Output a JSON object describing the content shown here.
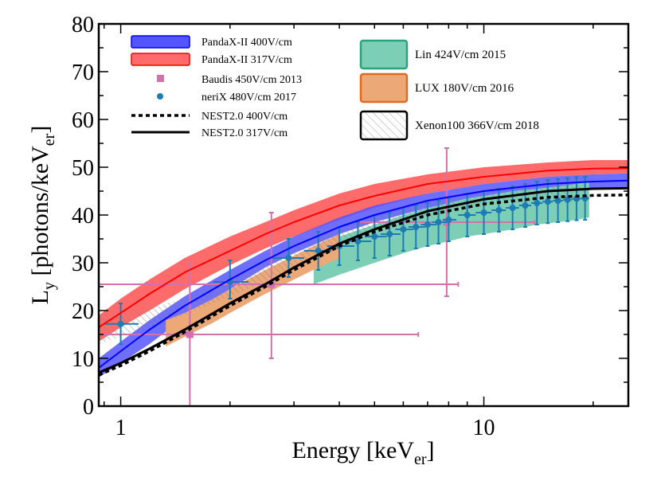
{
  "chart_data": {
    "type": "line",
    "xlabel": "Energy [keV",
    "xlabel_sub": "er",
    "xlabel_tail": "]",
    "ylabel": "L",
    "ylabel_sub": "y",
    "ylabel_mid": " [photons/keV",
    "ylabel_sub2": "er",
    "ylabel_tail": "]",
    "x_scale": "log",
    "xlim": [
      0.87,
      25
    ],
    "ylim": [
      0,
      80
    ],
    "x_ticks": [
      {
        "v": 1,
        "label": "1"
      },
      {
        "v": 10,
        "label": "10"
      }
    ],
    "y_ticks": [
      0,
      10,
      20,
      30,
      40,
      50,
      60,
      70,
      80
    ],
    "legend_left": [
      {
        "label": "PandaX-II 400V/cm",
        "style": "band",
        "color": "#5555ff"
      },
      {
        "label": "PandaX-II 317V/cm",
        "style": "band",
        "color": "#ff6a6a"
      },
      {
        "label": "Baudis 450V/cm 2013",
        "style": "square",
        "color": "#d371ac"
      },
      {
        "label": "neriX 480V/cm 2017",
        "style": "circle",
        "color": "#1f7bb4"
      },
      {
        "label": "NEST2.0 400V/cm",
        "style": "dashed",
        "color": "#000000"
      },
      {
        "label": "NEST2.0 317V/cm",
        "style": "solid",
        "color": "#000000"
      }
    ],
    "legend_right": [
      {
        "label": "Lin 424V/cm 2015",
        "style": "patch",
        "fill": "#7ccfb5",
        "stroke": "#2aa37a"
      },
      {
        "label": "LUX 180V/cm 2016",
        "style": "patch",
        "fill": "#eda878",
        "stroke": "#e06a1e"
      },
      {
        "label": "Xenon100 366V/cm 2018",
        "style": "hatch",
        "fill": "none",
        "stroke": "#000000"
      }
    ],
    "series": [
      {
        "name": "PandaX-II 317V/cm band",
        "type": "band",
        "color": "#ff6a6a",
        "x": [
          0.87,
          1.0,
          1.2,
          1.5,
          2.0,
          2.5,
          3.0,
          4.0,
          5.0,
          7.0,
          10.0,
          15.0,
          20.0,
          25.0
        ],
        "y_low": [
          13.5,
          16.5,
          20.0,
          24.5,
          29.5,
          33.0,
          35.5,
          39.0,
          41.5,
          44.5,
          46.5,
          48.0,
          48.5,
          48.7
        ],
        "y_high": [
          19.0,
          22.5,
          26.5,
          31.0,
          35.5,
          38.5,
          41.0,
          44.5,
          46.5,
          48.5,
          50.0,
          51.0,
          51.5,
          51.5
        ]
      },
      {
        "name": "PandaX-II 400V/cm band",
        "type": "band",
        "color": "#5555ff",
        "x": [
          0.87,
          1.0,
          1.2,
          1.5,
          2.0,
          2.5,
          3.0,
          4.0,
          5.0,
          7.0,
          10.0,
          15.0,
          20.0,
          25.0
        ],
        "y_low": [
          6.0,
          9.0,
          13.0,
          18.5,
          24.5,
          29.0,
          32.0,
          36.0,
          38.5,
          41.5,
          43.5,
          45.0,
          45.5,
          45.7
        ],
        "y_high": [
          10.0,
          13.5,
          18.0,
          23.0,
          28.5,
          32.5,
          35.5,
          39.5,
          42.0,
          44.5,
          46.5,
          48.0,
          48.5,
          48.7
        ]
      },
      {
        "name": "Lin 424V/cm 2015",
        "type": "band",
        "color": "#7ccfb5",
        "x": [
          3.4,
          4.0,
          5.0,
          6.0,
          7.0,
          8.0,
          9.0,
          10.0,
          12.0,
          14.0,
          16.0,
          18.0,
          19.5
        ],
        "y_low": [
          25.5,
          27.5,
          30.0,
          32.0,
          33.5,
          34.5,
          35.5,
          36.0,
          37.0,
          38.0,
          38.5,
          39.0,
          39.5
        ],
        "y_high": [
          33.0,
          35.5,
          38.0,
          40.0,
          41.5,
          42.5,
          43.5,
          44.0,
          45.0,
          45.5,
          46.0,
          46.5,
          47.0
        ]
      },
      {
        "name": "LUX 180V/cm 2016",
        "type": "band",
        "color": "#eda878",
        "x": [
          1.33,
          1.5,
          1.8,
          2.0,
          2.5,
          3.0,
          3.5,
          4.0
        ],
        "y_low": [
          12.5,
          14.5,
          17.5,
          19.5,
          23.5,
          26.5,
          29.0,
          31.0
        ],
        "y_high": [
          18.0,
          19.5,
          22.5,
          24.5,
          28.5,
          31.5,
          34.0,
          36.0
        ]
      },
      {
        "name": "Xenon100 366V/cm 2018",
        "type": "hatch",
        "color": "#555555",
        "x": [
          0.87,
          1.0,
          1.2,
          1.5,
          2.0,
          2.5,
          3.0,
          4.0,
          5.0,
          7.0,
          10.0,
          15.0,
          19.0
        ],
        "y_low": [
          13.0,
          14.5,
          16.5,
          19.0,
          23.0,
          26.0,
          29.0,
          33.5,
          36.5,
          40.0,
          42.5,
          44.0,
          44.5
        ],
        "y_high": [
          19.0,
          19.5,
          20.5,
          22.5,
          27.0,
          30.5,
          33.0,
          37.0,
          39.5,
          42.5,
          44.5,
          46.0,
          46.5
        ]
      },
      {
        "name": "PandaX-II 317V/cm fit",
        "type": "line",
        "color": "#ff0000",
        "width": 2,
        "x": [
          0.87,
          1.0,
          1.2,
          1.5,
          2.0,
          2.5,
          3.0,
          4.0,
          5.0,
          7.0,
          10.0,
          15.0,
          20.0,
          25.0
        ],
        "y": [
          16.5,
          19.5,
          23.5,
          28.0,
          32.5,
          36.0,
          38.5,
          42.0,
          44.0,
          46.5,
          48.0,
          49.3,
          49.7,
          49.8
        ]
      },
      {
        "name": "PandaX-II 400V/cm fit",
        "type": "line",
        "color": "#0000ff",
        "width": 2,
        "x": [
          0.87,
          1.0,
          1.2,
          1.5,
          2.0,
          2.5,
          3.0,
          4.0,
          5.0,
          7.0,
          10.0,
          15.0,
          20.0,
          25.0
        ],
        "y": [
          8.0,
          11.5,
          16.0,
          21.0,
          26.5,
          30.5,
          33.5,
          37.5,
          40.0,
          43.0,
          45.0,
          46.5,
          47.0,
          47.2
        ]
      },
      {
        "name": "NEST2.0 400V/cm",
        "type": "line",
        "color": "#000000",
        "width": 3.5,
        "dash": "5,4",
        "x": [
          0.87,
          1.0,
          1.2,
          1.5,
          2.0,
          2.5,
          3.0,
          4.0,
          5.0,
          7.0,
          10.0,
          15.0,
          20.0,
          25.0
        ],
        "y": [
          6.5,
          8.5,
          11.5,
          15.5,
          21.0,
          25.0,
          28.5,
          33.5,
          36.5,
          40.0,
          42.3,
          43.7,
          44.1,
          44.2
        ]
      },
      {
        "name": "NEST2.0 317V/cm",
        "type": "line",
        "color": "#000000",
        "width": 3,
        "x": [
          0.87,
          1.0,
          1.2,
          1.5,
          2.0,
          2.5,
          3.0,
          4.0,
          5.0,
          7.0,
          10.0,
          15.0,
          20.0,
          25.0
        ],
        "y": [
          7.0,
          9.0,
          12.0,
          16.0,
          21.5,
          25.5,
          29.0,
          34.0,
          37.0,
          40.8,
          43.3,
          45.0,
          45.5,
          45.6
        ]
      }
    ],
    "baudis_points": [
      {
        "x": 1.55,
        "y": 15.0,
        "xlo": 0.87,
        "xhi": 6.6,
        "ylo": 0.0,
        "yhi": 30.0
      },
      {
        "x": 2.6,
        "y": 25.5,
        "xlo": 0.87,
        "xhi": 8.5,
        "ylo": 10.0,
        "yhi": 40.5
      },
      {
        "x": 7.9,
        "y": 38.5,
        "xlo": 4.5,
        "xhi": 13.8,
        "ylo": 23.0,
        "yhi": 54.0
      }
    ],
    "nerix_points": [
      {
        "x": 1.0,
        "y": 17.2,
        "xlo": 0.9,
        "xhi": 1.12,
        "ylo": 13.0,
        "yhi": 21.5
      },
      {
        "x": 2.0,
        "y": 26.0,
        "xlo": 1.8,
        "xhi": 2.25,
        "ylo": 22.5,
        "yhi": 30.5
      },
      {
        "x": 2.9,
        "y": 31.0,
        "xlo": 2.6,
        "xhi": 3.2,
        "ylo": 27.0,
        "yhi": 35.0
      },
      {
        "x": 3.5,
        "y": 32.5,
        "xlo": 3.2,
        "xhi": 3.8,
        "ylo": 28.5,
        "yhi": 36.5
      },
      {
        "x": 4.0,
        "y": 33.5,
        "xlo": 3.7,
        "xhi": 4.4,
        "ylo": 29.5,
        "yhi": 37.5
      },
      {
        "x": 4.5,
        "y": 34.5,
        "xlo": 4.2,
        "xhi": 4.9,
        "ylo": 30.5,
        "yhi": 38.5
      },
      {
        "x": 5.0,
        "y": 35.5,
        "xlo": 4.7,
        "xhi": 5.4,
        "ylo": 31.0,
        "yhi": 40.0
      },
      {
        "x": 5.5,
        "y": 36.0,
        "xlo": 5.2,
        "xhi": 5.9,
        "ylo": 31.5,
        "yhi": 40.5
      },
      {
        "x": 6.0,
        "y": 37.0,
        "xlo": 5.7,
        "xhi": 6.4,
        "ylo": 32.5,
        "yhi": 41.5
      },
      {
        "x": 6.5,
        "y": 37.5,
        "xlo": 6.2,
        "xhi": 6.9,
        "ylo": 33.0,
        "yhi": 42.0
      },
      {
        "x": 7.0,
        "y": 38.0,
        "xlo": 6.7,
        "xhi": 7.4,
        "ylo": 33.5,
        "yhi": 42.5
      },
      {
        "x": 7.5,
        "y": 38.5,
        "xlo": 7.2,
        "xhi": 7.9,
        "ylo": 34.0,
        "yhi": 43.0
      },
      {
        "x": 8.0,
        "y": 39.0,
        "xlo": 7.7,
        "xhi": 8.4,
        "ylo": 34.5,
        "yhi": 43.5
      },
      {
        "x": 9.0,
        "y": 40.0,
        "xlo": 8.5,
        "xhi": 9.5,
        "ylo": 35.5,
        "yhi": 44.5
      },
      {
        "x": 10.0,
        "y": 40.5,
        "xlo": 9.5,
        "xhi": 10.5,
        "ylo": 36.0,
        "yhi": 45.0
      },
      {
        "x": 11.0,
        "y": 41.0,
        "xlo": 10.5,
        "xhi": 11.5,
        "ylo": 36.5,
        "yhi": 45.5
      },
      {
        "x": 12.0,
        "y": 41.5,
        "xlo": 11.5,
        "xhi": 12.5,
        "ylo": 37.0,
        "yhi": 46.0
      },
      {
        "x": 13.0,
        "y": 42.0,
        "xlo": 12.5,
        "xhi": 13.5,
        "ylo": 37.5,
        "yhi": 46.5
      },
      {
        "x": 14.0,
        "y": 42.5,
        "xlo": 13.5,
        "xhi": 14.5,
        "ylo": 38.0,
        "yhi": 47.0
      },
      {
        "x": 15.0,
        "y": 42.8,
        "xlo": 14.5,
        "xhi": 15.5,
        "ylo": 38.3,
        "yhi": 47.3
      },
      {
        "x": 16.0,
        "y": 43.0,
        "xlo": 15.5,
        "xhi": 16.5,
        "ylo": 38.5,
        "yhi": 47.5
      },
      {
        "x": 17.0,
        "y": 43.2,
        "xlo": 16.5,
        "xhi": 17.5,
        "ylo": 38.7,
        "yhi": 47.7
      },
      {
        "x": 18.0,
        "y": 43.4,
        "xlo": 17.5,
        "xhi": 18.5,
        "ylo": 38.9,
        "yhi": 47.9
      },
      {
        "x": 19.0,
        "y": 43.5,
        "xlo": 18.5,
        "xhi": 19.5,
        "ylo": 39.0,
        "yhi": 48.0
      }
    ]
  }
}
